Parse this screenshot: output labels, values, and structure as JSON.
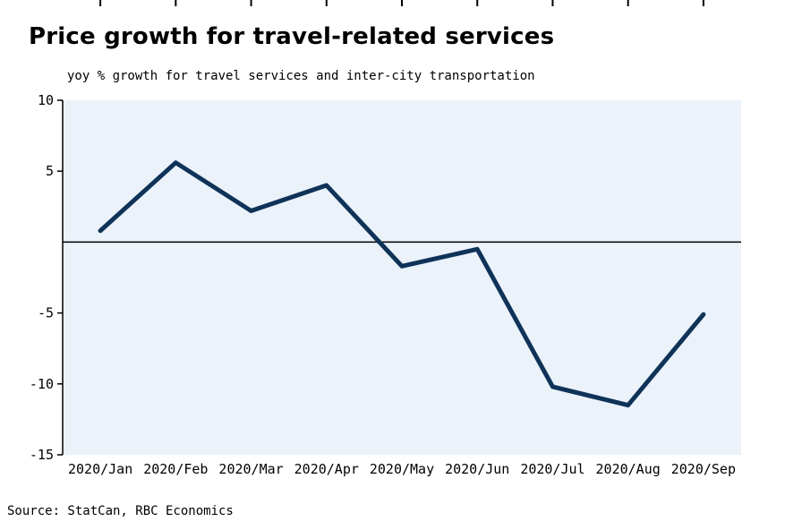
{
  "title": "Price growth for travel-related services",
  "subtitle": "yoy % growth for travel services and inter-city transportation",
  "source": "Source: StatCan, RBC Economics",
  "colors": {
    "line": "#0f3358",
    "plot_bg": "#ebf2fa",
    "axis": "#000000"
  },
  "chart_data": {
    "type": "line",
    "title": "Price growth for travel-related services",
    "subtitle": "yoy % growth for travel services and inter-city transportation",
    "categories": [
      "2020/Jan",
      "2020/Feb",
      "2020/Mar",
      "2020/Apr",
      "2020/May",
      "2020/Jun",
      "2020/Jul",
      "2020/Aug",
      "2020/Sep"
    ],
    "values": [
      0.8,
      5.6,
      2.2,
      4.0,
      -1.7,
      -0.5,
      -10.2,
      -11.5,
      -5.1
    ],
    "series_name": "yoy % growth, travel services and inter-city transportation",
    "xlabel": "",
    "ylabel": "yoy % growth",
    "ylim": [
      -15,
      10
    ],
    "yticks": [
      10,
      5,
      -5,
      -10,
      -15
    ],
    "zero_line": true,
    "grid": false,
    "legend": "none",
    "source": "Source: StatCan, RBC Economics"
  }
}
